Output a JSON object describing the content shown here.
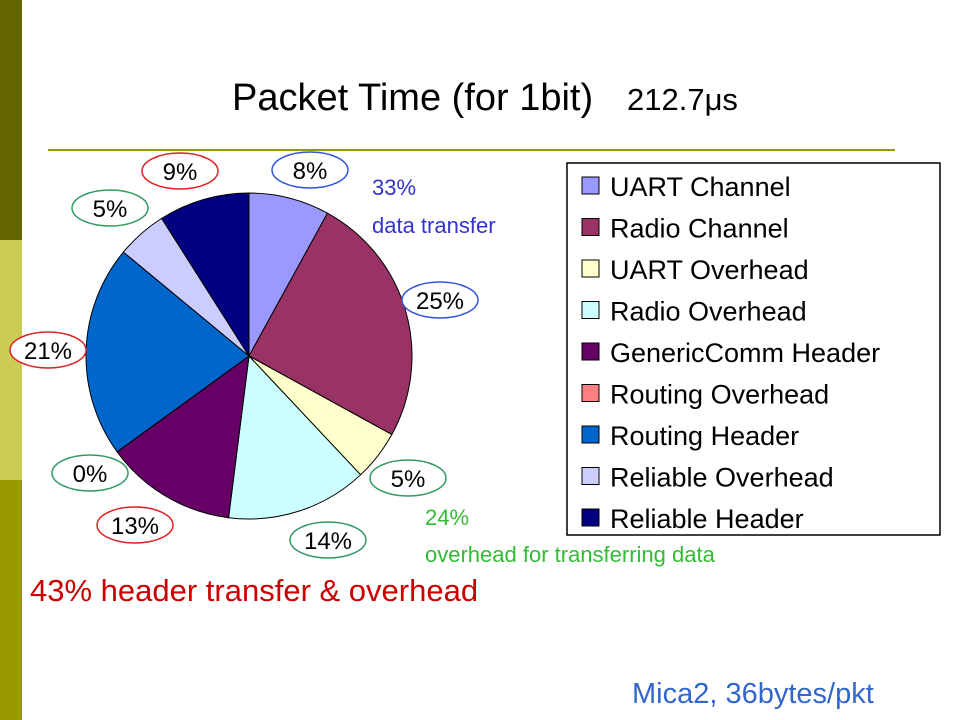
{
  "chart_data": {
    "type": "pie",
    "title": "Packet Time (for 1bit)",
    "title_value": "212.7μs",
    "categories": [
      "UART Channel",
      "Radio Channel",
      "UART Overhead",
      "Radio Overhead",
      "GenericComm Header",
      "Routing Overhead",
      "Routing Header",
      "Reliable Overhead",
      "Reliable Header"
    ],
    "values": [
      8,
      25,
      5,
      14,
      13,
      0,
      21,
      5,
      9
    ],
    "value_labels": [
      "8%",
      "25%",
      "5%",
      "14%",
      "13%",
      "0%",
      "21%",
      "5%",
      "9%"
    ],
    "colors": [
      "#9999ff",
      "#993366",
      "#ffffcc",
      "#ccffff",
      "#660066",
      "#ff8080",
      "#0066cc",
      "#ccccff",
      "#000080"
    ],
    "label_outline_colors": [
      "#3355dd",
      "#3355dd",
      "#339966",
      "#339966",
      "#dd2222",
      "#339966",
      "#dd2222",
      "#339966",
      "#dd2222"
    ],
    "annotations": [
      {
        "lines": [
          "33%",
          "data transfer"
        ],
        "color": "#3333cc"
      },
      {
        "lines": [
          "24%",
          "overhead for transferring data"
        ],
        "color": "#33bb33"
      },
      {
        "lines": [
          "43% header transfer & overhead"
        ],
        "color": "#cc0000"
      },
      {
        "lines": [
          "Mica2, 36bytes/pkt"
        ],
        "color": "#3366cc"
      }
    ]
  }
}
